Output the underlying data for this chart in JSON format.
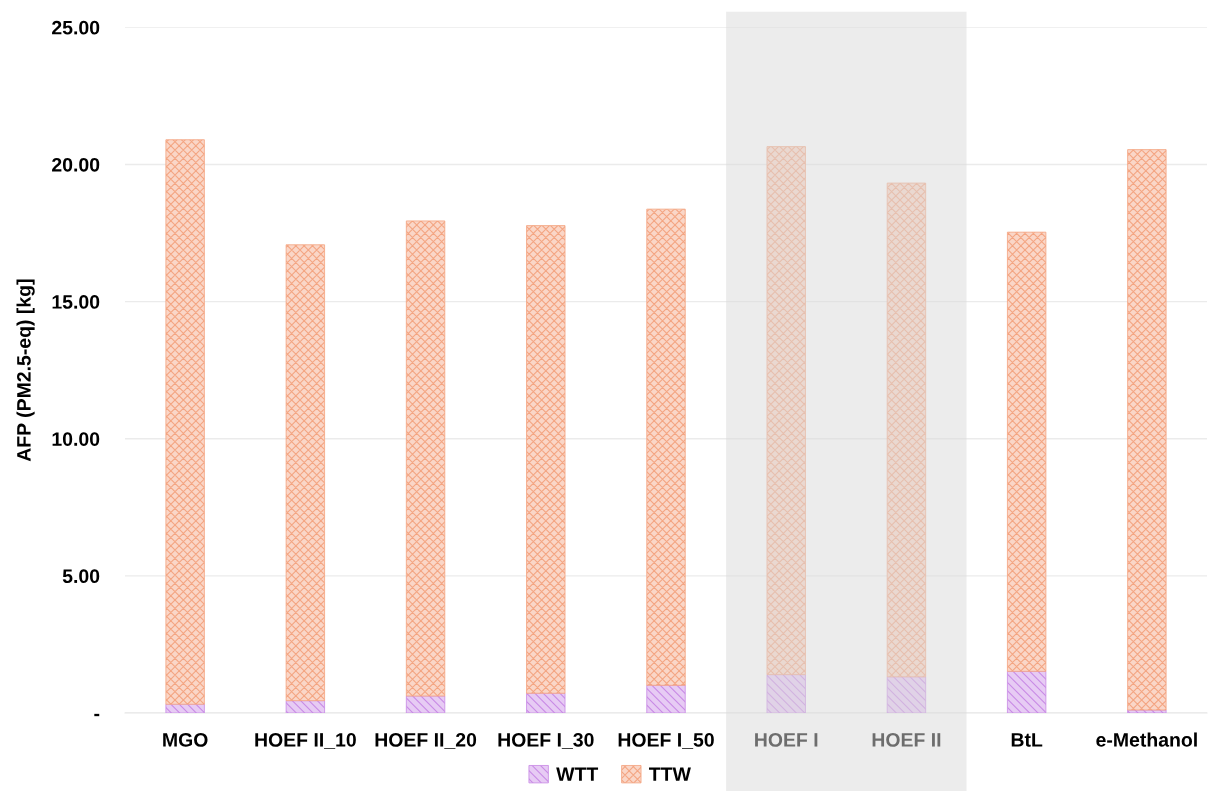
{
  "chart_data": {
    "type": "bar",
    "stacked": true,
    "ylabel": "AFP (PM2.5-eq) [kg]",
    "categories": [
      "MGO",
      "HOEF II_10",
      "HOEF II_20",
      "HOEF I_30",
      "HOEF I_50",
      "HOEF I",
      "HOEF II",
      "BtL",
      "e-Methanol"
    ],
    "series": [
      {
        "name": "WTT",
        "color": "#c98be6",
        "values": [
          0.32,
          0.45,
          0.62,
          0.72,
          1.01,
          1.4,
          1.32,
          1.52,
          0.11
        ]
      },
      {
        "name": "TTW",
        "color": "#f4a582",
        "values": [
          20.58,
          16.62,
          17.32,
          17.05,
          17.36,
          19.25,
          18.0,
          16.01,
          20.43
        ]
      }
    ],
    "ylim": [
      0,
      25
    ],
    "yticks": [
      {
        "value": 0,
        "label": "-"
      },
      {
        "value": 5,
        "label": "5.00"
      },
      {
        "value": 10,
        "label": "10.00"
      },
      {
        "value": 15,
        "label": "15.00"
      },
      {
        "value": 20,
        "label": "20.00"
      },
      {
        "value": 25,
        "label": "25.00"
      }
    ],
    "grid": "y",
    "legend": "bottom",
    "bands": [
      {
        "axis": "x",
        "from": "HOEF I",
        "to": "HOEF II",
        "color": "#d9d9d9"
      }
    ]
  }
}
